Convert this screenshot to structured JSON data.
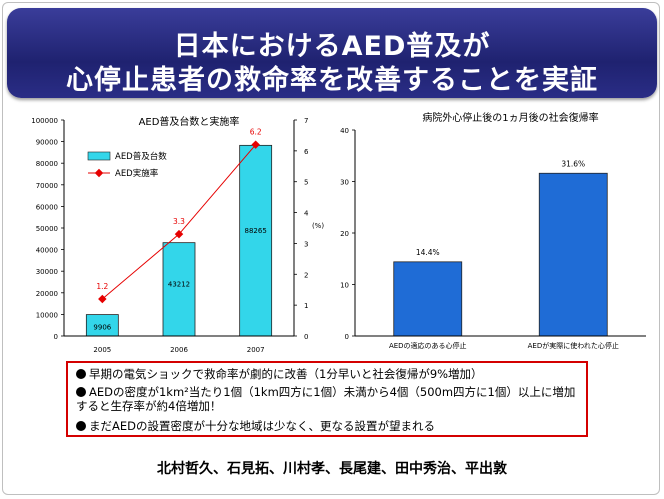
{
  "slide": {
    "title_line1": "日本におけるAED普及が",
    "title_line2": "心停止患者の救命率を改善することを実証"
  },
  "chart_data": [
    {
      "type": "bar",
      "title": "AED普及台数と実施率",
      "categories": [
        "2005",
        "2006",
        "2007"
      ],
      "series": [
        {
          "name": "AED普及台数",
          "type": "bar",
          "axis": "left",
          "values": [
            9906,
            43212,
            88265
          ],
          "color": "#33d6ea"
        },
        {
          "name": "AED実施率",
          "type": "line",
          "axis": "right",
          "values": [
            1.2,
            3.3,
            6.2
          ],
          "color": "#e60000"
        }
      ],
      "ylim": [
        0,
        100000
      ],
      "yticks": [
        "0",
        "10000",
        "20000",
        "30000",
        "40000",
        "50000",
        "60000",
        "70000",
        "80000",
        "90000",
        "100000"
      ],
      "y2lim": [
        0,
        7
      ],
      "y2ticks": [
        "0",
        "1",
        "2",
        "3",
        "4",
        "5",
        "6",
        "7"
      ],
      "y2label": "(%)",
      "bar_labels": [
        "9906",
        "43212",
        "88265"
      ],
      "line_labels": [
        "1.2",
        "3.3",
        "6.2"
      ],
      "legend_position": "top-left"
    },
    {
      "type": "bar",
      "title": "病院外心停止後の1ヵ月後の社会復帰率",
      "categories": [
        "AEDの適応のある心停止",
        "AEDが実際に使われた心停止"
      ],
      "values": [
        14.4,
        31.6
      ],
      "value_labels": [
        "14.4%",
        "31.6%"
      ],
      "ylim": [
        0,
        40
      ],
      "yticks": [
        "0",
        "10",
        "20",
        "30",
        "40"
      ],
      "color": "#1f6cd6"
    }
  ],
  "findings": [
    "早期の電気ショックで救命率が劇的に改善（1分早いと社会復帰が9%増加）",
    "AEDの密度が1km²当たり1個（1km四方に1個）未満から4個（500m四方に1個）以上に増加すると生存率が約4倍増加！",
    "まだAEDの設置密度が十分な地域は少なく、更なる設置が望まれる"
  ],
  "authors": "北村哲久、石見拓、川村孝、長尾建、田中秀治、平出敦"
}
